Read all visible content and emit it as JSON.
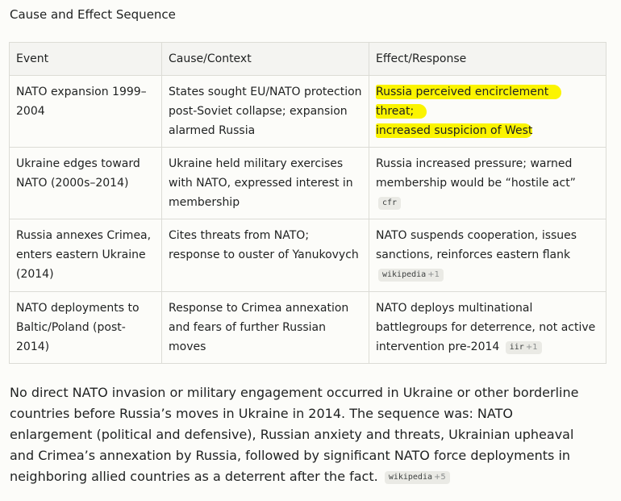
{
  "section": {
    "heading": "Cause and Effect Sequence"
  },
  "table": {
    "headers": [
      "Event",
      "Cause/Context",
      "Effect/Response"
    ],
    "rows": [
      {
        "event": "NATO expansion 1999–2004",
        "cause": "States sought EU/NATO protection post-Soviet collapse; expansion alarmed Russia",
        "effect_line1": "Russia perceived encirclement threat;",
        "effect_line2": "increased suspicion of West",
        "effect_highlighted": true
      },
      {
        "event": "Ukraine edges toward NATO (2000s–2014)",
        "cause": "Ukraine held military exercises with NATO, expressed interest in membership",
        "effect": "Russia increased pressure; warned membership would be “hostile act”",
        "citation": {
          "source": "cfr",
          "more": ""
        }
      },
      {
        "event": "Russia annexes Crimea, enters eastern Ukraine (2014)",
        "cause": "Cites threats from NATO; response to ouster of Yanukovych",
        "effect": "NATO suspends cooperation, issues sanctions, reinforces eastern flank",
        "citation": {
          "source": "wikipedia",
          "more": "+1"
        }
      },
      {
        "event": "NATO deployments to Baltic/Poland (post-2014)",
        "cause": "Response to Crimea annexation and fears of further Russian moves",
        "effect": "NATO deploys multinational battlegroups for deterrence, not active intervention pre-2014",
        "citation": {
          "source": "iir",
          "more": "+1"
        }
      }
    ]
  },
  "summary": {
    "text": "No direct NATO invasion or military engagement occurred in Ukraine or other borderline countries before Russia’s moves in Ukraine in 2014. The sequence was: NATO enlargement (political and defensive), Russian anxiety and threats, Ukrainian upheaval and Crimea’s annexation by Russia, followed by significant NATO force deployments in neighboring allied countries as a deterrent after the fact.",
    "citation": {
      "source": "wikipedia",
      "more": "+5"
    }
  },
  "colors": {
    "highlight": "#fbf400",
    "header_bg": "#f4f4f1",
    "border": "#dcdcd6",
    "citation_bg": "#eaeae5"
  }
}
